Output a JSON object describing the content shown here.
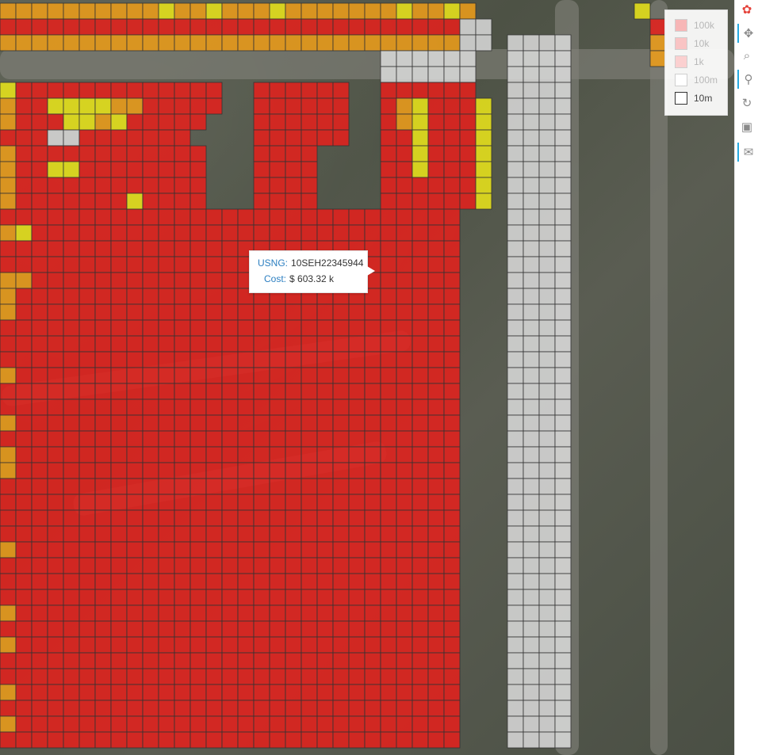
{
  "map": {
    "colors": {
      "red": "#e2211c",
      "orange": "#eb9c1a",
      "yellow": "#e7e21a",
      "white": "#dcdcdc"
    },
    "cell_grid_rows": [
      "OOOOOOOOOOYOOYOOOYOOOOOOOYOOYO..........Y.",
      "RRRRRRRRRRRRRRRRRRRRRRRRRRRRRWW..........R",
      "OOOOOOOOOOOOOOOOOOOOOOOOOOOOOWW.WWWW.....O",
      "........................WWWWWW..WWWW.....O",
      "........................WWWWWW..WWWW......",
      "YRRRRRRRRRRRRR..RRRRRR..RRRRRR..WWWW......",
      "ORRYYYYOORRRRR..RRRRRR..ROYRRRY.WWWW......",
      "ORRRYYOYRRRRR...RRRRRR..ROYRRRY.WWWW......",
      "RRRWWRRRRRRR....RRRRRR..RRYRRRY.WWWW......",
      "ORRRRRRRRRRRR...RRRR....RRYRRRY.WWWW......",
      "ORRYYRRRRRRRR...RRRR....RRYRRRY.WWWW......",
      "ORRRRRRRRRRRR...RRRR....RRRRRRY.WWWW......",
      "ORRRRRRRYRRRR...RRRR....RRRRRRY.WWWW......",
      "RRRRRRRRRRRRRRRRRRRRRRRRRRRRR...WWWW......",
      "OYRRRRRRRRRRRRRRRRRRRRRRRRRRR...WWWW......",
      "RRRRRRRRRRRRRRRRRRRRRRRRRRRRR...WWWW......",
      "RRRRRRRRRRRRRRRRRRRRRRRRRRRRR...WWWW......",
      "OORRRRRRRRRRRRRRRRRRRRRRRRRRR...WWWW......",
      "ORRRRRRRRRRRRRRRRRRRRRRRRRRRR...WWWW......",
      "ORRRRRRRRRRRRRRRRRRRRRRRRRRRR...WWWW......",
      "RRRRRRRRRRRRRRRRRRRRRRRRRRRRR...WWWW......",
      "RRRRRRRRRRRRRRRRRRRRRRRRRRRRR...WWWW......",
      "RRRRRRRRRRRRRRRRRRRRRRRRRRRRR...WWWW......",
      "ORRRRRRRRRRRRRRRRRRRRRRRRRRRR...WWWW......",
      "RRRRRRRRRRRRRRRRRRRRRRRRRRRRR...WWWW......",
      "RRRRRRRRRRRRRRRRRRRRRRRRRRRRR...WWWW......",
      "ORRRRRRRRRRRRRRRRRRRRRRRRRRRR...WWWW......",
      "RRRRRRRRRRRRRRRRRRRRRRRRRRRRR...WWWW......",
      "ORRRRRRRRRRRRRRRRRRRRRRRRRRRR...WWWW......",
      "ORRRRRRRRRRRRRRRRRRRRRRRRRRRR...WWWW......",
      "RRRRRRRRRRRRRRRRRRRRRRRRRRRRR...WWWW......",
      "RRRRRRRRRRRRRRRRRRRRRRRRRRRRR...WWWW......",
      "RRRRRRRRRRRRRRRRRRRRRRRRRRRRR...WWWW......",
      "RRRRRRRRRRRRRRRRRRRRRRRRRRRRR...WWWW......",
      "ORRRRRRRRRRRRRRRRRRRRRRRRRRRR...WWWW......",
      "RRRRRRRRRRRRRRRRRRRRRRRRRRRRR...WWWW......",
      "RRRRRRRRRRRRRRRRRRRRRRRRRRRRR...WWWW......",
      "RRRRRRRRRRRRRRRRRRRRRRRRRRRRR...WWWW......",
      "ORRRRRRRRRRRRRRRRRRRRRRRRRRRR...WWWW......",
      "RRRRRRRRRRRRRRRRRRRRRRRRRRRRR...WWWW......",
      "ORRRRRRRRRRRRRRRRRRRRRRRRRRRR...WWWW......",
      "RRRRRRRRRRRRRRRRRRRRRRRRRRRRR...WWWW......",
      "RRRRRRRRRRRRRRRRRRRRRRRRRRRRR...WWWW......",
      "ORRRRRRRRRRRRRRRRRRRRRRRRRRRR...WWWW......",
      "RRRRRRRRRRRRRRRRRRRRRRRRRRRRR...WWWW......",
      "ORRRRRRRRRRRRRRRRRRRRRRRRRRRR...WWWW......",
      "RRRRRRRRRRRRRRRRRRRRRRRRRRRRR...WWWW......"
    ]
  },
  "legend": {
    "items": [
      {
        "label": "100k",
        "color": "#f7b6b6",
        "faded": true
      },
      {
        "label": "10k",
        "color": "#f9c4c4",
        "faded": true
      },
      {
        "label": "1k",
        "color": "#fbd0d0",
        "faded": true
      },
      {
        "label": "100m",
        "color": "#ffffff",
        "faded": true
      },
      {
        "label": "10m",
        "color": "#ffffff",
        "faded": false
      }
    ]
  },
  "tooltip": {
    "usng_label": "USNG:",
    "usng_value": "10SEH22345944",
    "cost_label": "Cost:",
    "cost_value": "$ 603.32 k"
  },
  "toolbar": {
    "tools": [
      {
        "name": "bokeh-logo-icon",
        "glyph": "✿"
      },
      {
        "name": "pan-icon",
        "glyph": "✥"
      },
      {
        "name": "box-zoom-icon",
        "glyph": "⌕"
      },
      {
        "name": "wheel-zoom-icon",
        "glyph": "⚲"
      },
      {
        "name": "reset-icon",
        "glyph": "↻"
      },
      {
        "name": "save-icon",
        "glyph": "▣"
      },
      {
        "name": "hover-icon",
        "glyph": "✉"
      }
    ]
  }
}
